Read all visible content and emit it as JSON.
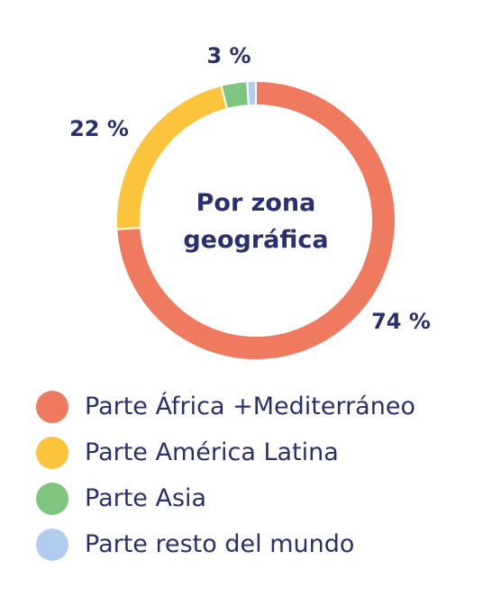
{
  "chart_data": {
    "type": "pie",
    "title": "Por zona geográfica",
    "title_lines": [
      "Por zona",
      "geográfica"
    ],
    "categories": [
      "Parte África +Mediterráneo",
      "Parte América Latina",
      "Parte Asia",
      "Parte resto del mundo"
    ],
    "values": [
      74,
      22,
      3,
      1
    ],
    "value_labels": [
      "74 %",
      "22 %",
      "3 %",
      ""
    ],
    "colors": [
      "#f07a5f",
      "#fcc43d",
      "#7fc47f",
      "#b3cdf0"
    ],
    "legend_position": "bottom"
  }
}
